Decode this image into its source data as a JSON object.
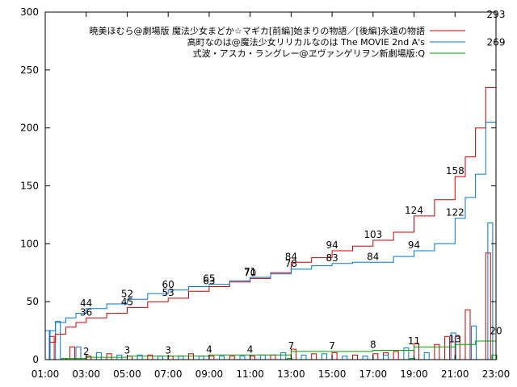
{
  "chart_data": {
    "type": "line",
    "title": "",
    "xlabel": "",
    "ylabel": "",
    "xlim": [
      1.0,
      23.0
    ],
    "ylim": [
      0,
      300
    ],
    "grid": false,
    "legend_position": "top-right",
    "x_ticks": [
      "01:00",
      "03:00",
      "05:00",
      "07:00",
      "09:00",
      "11:00",
      "13:00",
      "15:00",
      "17:00",
      "19:00",
      "21:00",
      "23:00"
    ],
    "y_ticks": [
      0,
      50,
      100,
      150,
      200,
      250,
      300
    ],
    "colors": {
      "madoka": "#cc0000",
      "nanoha": "#0077cc",
      "eva": "#00a000"
    },
    "series": [
      {
        "key": "madoka",
        "name": "暁美ほむら@劇場版 魔法少女まどか☆マギカ[前編]始まりの物語／[後編]永遠の物語",
        "cumulative": [
          {
            "x": 1.0,
            "y": 0
          },
          {
            "x": 1.2,
            "y": 15
          },
          {
            "x": 1.5,
            "y": 22
          },
          {
            "x": 2.0,
            "y": 28
          },
          {
            "x": 2.5,
            "y": 32
          },
          {
            "x": 3.0,
            "y": 36
          },
          {
            "x": 4.0,
            "y": 40
          },
          {
            "x": 5.0,
            "y": 45
          },
          {
            "x": 6.0,
            "y": 50
          },
          {
            "x": 7.0,
            "y": 53
          },
          {
            "x": 8.0,
            "y": 59
          },
          {
            "x": 9.0,
            "y": 63
          },
          {
            "x": 10.0,
            "y": 67
          },
          {
            "x": 11.0,
            "y": 70
          },
          {
            "x": 12.0,
            "y": 75
          },
          {
            "x": 13.0,
            "y": 84
          },
          {
            "x": 14.0,
            "y": 88
          },
          {
            "x": 15.0,
            "y": 94
          },
          {
            "x": 16.0,
            "y": 98
          },
          {
            "x": 17.0,
            "y": 103
          },
          {
            "x": 18.0,
            "y": 110
          },
          {
            "x": 19.0,
            "y": 124
          },
          {
            "x": 20.0,
            "y": 138
          },
          {
            "x": 21.0,
            "y": 158
          },
          {
            "x": 21.5,
            "y": 175
          },
          {
            "x": 22.0,
            "y": 200
          },
          {
            "x": 22.5,
            "y": 235
          },
          {
            "x": 23.0,
            "y": 293
          }
        ],
        "labels": [
          {
            "x": 3.0,
            "y": 36,
            "text": "36"
          },
          {
            "x": 5.0,
            "y": 45,
            "text": "45"
          },
          {
            "x": 7.0,
            "y": 53,
            "text": "53"
          },
          {
            "x": 9.0,
            "y": 63,
            "text": "63"
          },
          {
            "x": 11.0,
            "y": 70,
            "text": "70"
          },
          {
            "x": 13.0,
            "y": 84,
            "text": "84"
          },
          {
            "x": 15.0,
            "y": 94,
            "text": "94"
          },
          {
            "x": 17.0,
            "y": 103,
            "text": "103"
          },
          {
            "x": 19.0,
            "y": 124,
            "text": "124"
          },
          {
            "x": 21.0,
            "y": 158,
            "text": "158"
          },
          {
            "x": 23.0,
            "y": 293,
            "text": "293"
          }
        ],
        "hourly": [
          {
            "x": 1.2,
            "y": 20
          },
          {
            "x": 2.2,
            "y": 11
          },
          {
            "x": 3.0,
            "y": 3
          },
          {
            "x": 4.0,
            "y": 5
          },
          {
            "x": 5.0,
            "y": 3
          },
          {
            "x": 6.0,
            "y": 4
          },
          {
            "x": 7.0,
            "y": 3
          },
          {
            "x": 8.0,
            "y": 5
          },
          {
            "x": 9.0,
            "y": 3
          },
          {
            "x": 10.0,
            "y": 3
          },
          {
            "x": 11.0,
            "y": 3
          },
          {
            "x": 12.0,
            "y": 4
          },
          {
            "x": 13.0,
            "y": 9
          },
          {
            "x": 14.0,
            "y": 5
          },
          {
            "x": 15.0,
            "y": 6
          },
          {
            "x": 16.0,
            "y": 4
          },
          {
            "x": 17.0,
            "y": 5
          },
          {
            "x": 17.5,
            "y": 6
          },
          {
            "x": 18.0,
            "y": 7
          },
          {
            "x": 19.0,
            "y": 14
          },
          {
            "x": 20.0,
            "y": 13
          },
          {
            "x": 20.5,
            "y": 20
          },
          {
            "x": 21.0,
            "y": 20
          },
          {
            "x": 21.5,
            "y": 43
          },
          {
            "x": 22.5,
            "y": 92
          }
        ]
      },
      {
        "key": "nanoha",
        "name": "高町なのは@魔法少女リリカルなのは The MOVIE 2nd A's",
        "cumulative": [
          {
            "x": 1.0,
            "y": 0
          },
          {
            "x": 1.2,
            "y": 25
          },
          {
            "x": 1.5,
            "y": 32
          },
          {
            "x": 2.0,
            "y": 36
          },
          {
            "x": 2.5,
            "y": 40
          },
          {
            "x": 3.0,
            "y": 44
          },
          {
            "x": 4.0,
            "y": 48
          },
          {
            "x": 5.0,
            "y": 52
          },
          {
            "x": 6.0,
            "y": 57
          },
          {
            "x": 7.0,
            "y": 60
          },
          {
            "x": 8.0,
            "y": 63
          },
          {
            "x": 9.0,
            "y": 65
          },
          {
            "x": 10.0,
            "y": 68
          },
          {
            "x": 11.0,
            "y": 71
          },
          {
            "x": 12.0,
            "y": 74
          },
          {
            "x": 13.0,
            "y": 78
          },
          {
            "x": 14.0,
            "y": 81
          },
          {
            "x": 15.0,
            "y": 83
          },
          {
            "x": 16.0,
            "y": 84
          },
          {
            "x": 17.0,
            "y": 84
          },
          {
            "x": 18.0,
            "y": 89
          },
          {
            "x": 19.0,
            "y": 94
          },
          {
            "x": 20.0,
            "y": 100
          },
          {
            "x": 21.0,
            "y": 122
          },
          {
            "x": 21.5,
            "y": 140
          },
          {
            "x": 22.0,
            "y": 160
          },
          {
            "x": 22.5,
            "y": 205
          },
          {
            "x": 23.0,
            "y": 269
          }
        ],
        "labels": [
          {
            "x": 3.0,
            "y": 44,
            "text": "44"
          },
          {
            "x": 5.0,
            "y": 52,
            "text": "52"
          },
          {
            "x": 7.0,
            "y": 60,
            "text": "60"
          },
          {
            "x": 9.0,
            "y": 65,
            "text": "65"
          },
          {
            "x": 11.0,
            "y": 71,
            "text": "71"
          },
          {
            "x": 13.0,
            "y": 78,
            "text": "78"
          },
          {
            "x": 15.0,
            "y": 83,
            "text": "83"
          },
          {
            "x": 17.0,
            "y": 84,
            "text": "84"
          },
          {
            "x": 19.0,
            "y": 94,
            "text": "94"
          },
          {
            "x": 21.0,
            "y": 122,
            "text": "122"
          },
          {
            "x": 23.0,
            "y": 269,
            "text": "269"
          }
        ],
        "hourly": [
          {
            "x": 1.0,
            "y": 25
          },
          {
            "x": 1.5,
            "y": 33
          },
          {
            "x": 2.5,
            "y": 11
          },
          {
            "x": 3.5,
            "y": 6
          },
          {
            "x": 4.5,
            "y": 4
          },
          {
            "x": 5.5,
            "y": 4
          },
          {
            "x": 6.5,
            "y": 3
          },
          {
            "x": 7.5,
            "y": 3
          },
          {
            "x": 8.5,
            "y": 3
          },
          {
            "x": 9.5,
            "y": 3
          },
          {
            "x": 10.5,
            "y": 3
          },
          {
            "x": 11.5,
            "y": 4
          },
          {
            "x": 12.5,
            "y": 6
          },
          {
            "x": 13.5,
            "y": 4
          },
          {
            "x": 14.5,
            "y": 5
          },
          {
            "x": 15.5,
            "y": 3
          },
          {
            "x": 16.5,
            "y": 3
          },
          {
            "x": 17.5,
            "y": 4
          },
          {
            "x": 18.5,
            "y": 10
          },
          {
            "x": 19.5,
            "y": 6
          },
          {
            "x": 20.8,
            "y": 23
          },
          {
            "x": 21.8,
            "y": 29
          },
          {
            "x": 22.6,
            "y": 118
          }
        ]
      },
      {
        "key": "eva",
        "name": "式波・アスカ・ラングレー@ヱヴァンゲリヲン新劇場版:Q",
        "cumulative": [
          {
            "x": 1.0,
            "y": 0
          },
          {
            "x": 2.0,
            "y": 1
          },
          {
            "x": 3.0,
            "y": 2
          },
          {
            "x": 5.0,
            "y": 3
          },
          {
            "x": 7.0,
            "y": 3
          },
          {
            "x": 9.0,
            "y": 4
          },
          {
            "x": 11.0,
            "y": 4
          },
          {
            "x": 13.0,
            "y": 7
          },
          {
            "x": 15.0,
            "y": 7
          },
          {
            "x": 17.0,
            "y": 8
          },
          {
            "x": 19.0,
            "y": 11
          },
          {
            "x": 21.0,
            "y": 13
          },
          {
            "x": 22.0,
            "y": 16
          },
          {
            "x": 23.0,
            "y": 20
          }
        ],
        "labels": [
          {
            "x": 3.0,
            "y": 2,
            "text": "2"
          },
          {
            "x": 5.0,
            "y": 3,
            "text": "3"
          },
          {
            "x": 7.0,
            "y": 3,
            "text": "3"
          },
          {
            "x": 9.0,
            "y": 4,
            "text": "4"
          },
          {
            "x": 11.0,
            "y": 4,
            "text": "4"
          },
          {
            "x": 13.0,
            "y": 7,
            "text": "7"
          },
          {
            "x": 15.0,
            "y": 7,
            "text": "7"
          },
          {
            "x": 17.0,
            "y": 8,
            "text": "8"
          },
          {
            "x": 19.0,
            "y": 11,
            "text": "11"
          },
          {
            "x": 21.0,
            "y": 13,
            "text": "13"
          },
          {
            "x": 23.0,
            "y": 20,
            "text": "20"
          }
        ],
        "hourly": [
          {
            "x": 1.8,
            "y": 1
          },
          {
            "x": 12.8,
            "y": 1
          },
          {
            "x": 18.8,
            "y": 1
          },
          {
            "x": 22.8,
            "y": 4
          }
        ]
      }
    ]
  }
}
